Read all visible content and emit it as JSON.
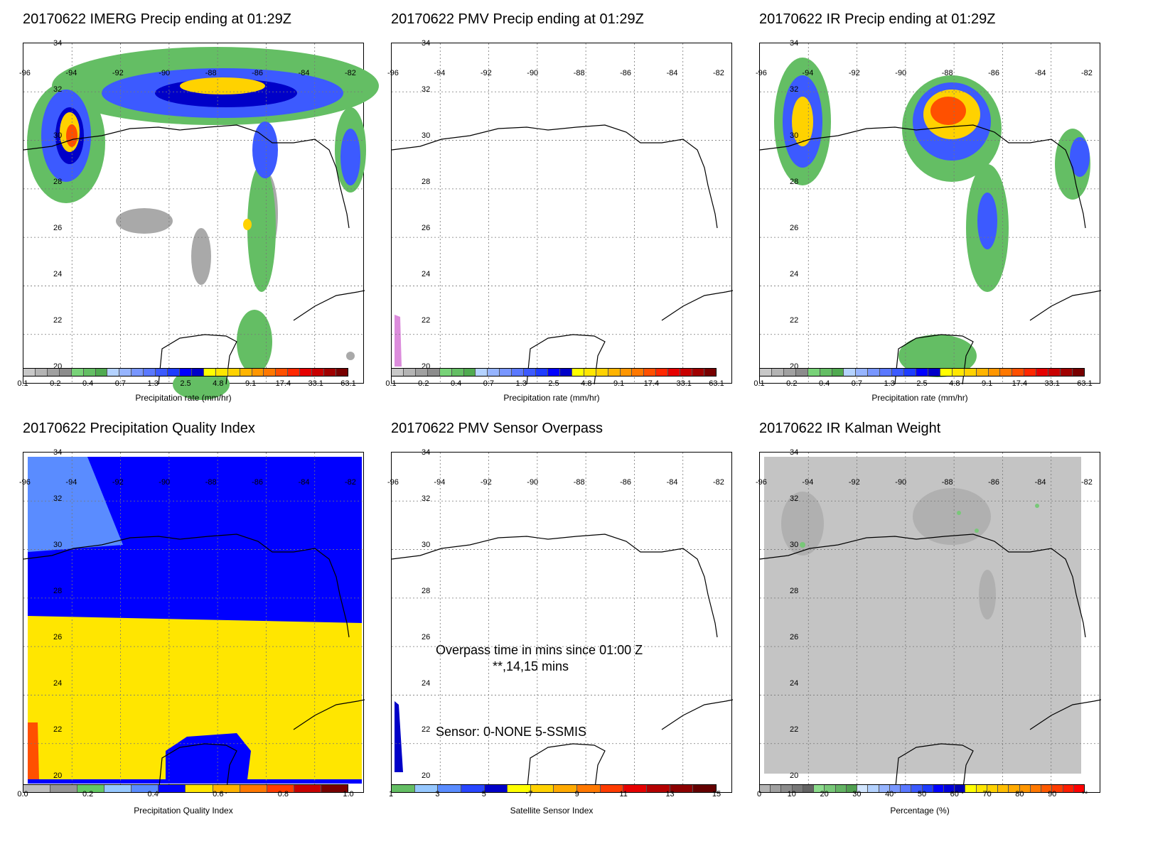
{
  "lon_labels": [
    "-96",
    "-94",
    "-92",
    "-90",
    "-88",
    "-86",
    "-84",
    "-82"
  ],
  "lat_labels": [
    "34",
    "32",
    "30",
    "28",
    "26",
    "24",
    "22",
    "20"
  ],
  "precip_ticks": [
    "0.1",
    "0.2",
    "0.4",
    "0.7",
    "1.3",
    "2.5",
    "4.8",
    "9.1",
    "17.4",
    "33.1",
    "63.1"
  ],
  "precip_colors": [
    "#c8c8c8",
    "#b4b4b4",
    "#a0a0a0",
    "#8c8c8c",
    "#78d278",
    "#64be64",
    "#50aa50",
    "#b4d2ff",
    "#96b4ff",
    "#7896ff",
    "#5a78ff",
    "#3c5aff",
    "#1e3cff",
    "#0000ff",
    "#0000c8",
    "#ffff00",
    "#ffe600",
    "#ffd200",
    "#ffb400",
    "#ff9600",
    "#ff7800",
    "#ff5000",
    "#ff2800",
    "#e60000",
    "#c80000",
    "#a00000",
    "#780000"
  ],
  "panels": [
    {
      "title": "20170622 IMERG Precip ending at 01:29Z",
      "cbar_title": "Precipitation rate (mm/hr)"
    },
    {
      "title": "20170622 PMV Precip ending at 01:29Z",
      "cbar_title": "Precipitation rate (mm/hr)"
    },
    {
      "title": "20170622 IR Precip ending at 01:29Z",
      "cbar_title": "Precipitation rate (mm/hr)"
    },
    {
      "title": "20170622 Precipitation Quality Index",
      "cbar_title": "Precipitation Quality Index"
    },
    {
      "title": "20170622 PMV Sensor Overpass",
      "cbar_title": "Satellite Sensor Index"
    },
    {
      "title": "20170622 IR Kalman Weight",
      "cbar_title": "Percentage (%)"
    }
  ],
  "pqi": {
    "ticks": [
      "0.0",
      "0.2",
      "0.4",
      "0.6",
      "0.8",
      "1.0"
    ],
    "colors": [
      "#bebebe",
      "#969696",
      "#64c864",
      "#96c8ff",
      "#5a8cff",
      "#0000ff",
      "#ffe600",
      "#ffb400",
      "#ff7800",
      "#ff3c00",
      "#c80000",
      "#780000"
    ]
  },
  "sensor": {
    "ticks": [
      "1",
      "3",
      "5",
      "7",
      "9",
      "11",
      "13",
      "15"
    ],
    "colors": [
      "#64be64",
      "#96c8ff",
      "#5a8cff",
      "#2846ff",
      "#0000c8",
      "#ffff00",
      "#ffd200",
      "#ffaa00",
      "#ff7800",
      "#ff3c00",
      "#e60000",
      "#b40000",
      "#8c0000",
      "#640000"
    ],
    "overpass_line1": "Overpass time in mins since 01:00 Z",
    "overpass_line2": "**,14,15 mins",
    "sensor_line": "Sensor:   0-NONE  5-SSMIS"
  },
  "kalman": {
    "ticks": [
      "0",
      "10",
      "20",
      "30",
      "40",
      "50",
      "60",
      "70",
      "80",
      "90",
      "**"
    ],
    "colors": [
      "#b4b4b4",
      "#a0a0a0",
      "#8c8c8c",
      "#787878",
      "#646464",
      "#8cdc8c",
      "#78c878",
      "#64b464",
      "#50a050",
      "#d2e6ff",
      "#b4d2ff",
      "#96b4ff",
      "#7896ff",
      "#5a78ff",
      "#3c5aff",
      "#1e3cff",
      "#0000ff",
      "#0000dc",
      "#0000b4",
      "#ffff00",
      "#ffe600",
      "#ffd200",
      "#ffbe00",
      "#ffaa00",
      "#ff9600",
      "#ff7800",
      "#ff5a00",
      "#ff3c00",
      "#ff1e00",
      "#ff0000"
    ]
  }
}
